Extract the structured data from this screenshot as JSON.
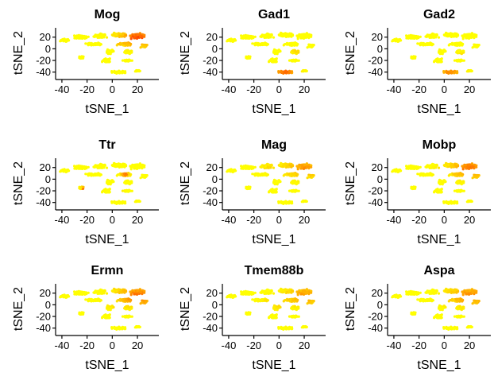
{
  "chart_data": {
    "type": "scatter",
    "layout": "3x3 grid of tSNE feature plots",
    "xlabel": "tSNE_1",
    "ylabel": "tSNE_2",
    "xlim": [
      -45,
      37
    ],
    "ylim": [
      -50,
      36
    ],
    "x_ticks": [
      -40,
      -20,
      0,
      20
    ],
    "x_tick_labels": [
      "-40",
      "-20",
      "0",
      "20"
    ],
    "y_ticks": [
      -40,
      -20,
      0,
      20
    ],
    "y_tick_labels": [
      "-40",
      "-20",
      "0",
      "20"
    ],
    "color_scale": {
      "low": "#ffff00",
      "mid": "#ffa500",
      "high": "#ff2200"
    },
    "panels": [
      {
        "title": "Mog",
        "hotspots": [
          {
            "x": 20,
            "y": 18,
            "r": 14,
            "level": 0.85
          },
          {
            "x": 5,
            "y": 10,
            "r": 6,
            "level": 0.4
          }
        ]
      },
      {
        "title": "Gad1",
        "hotspots": [
          {
            "x": 5,
            "y": -40,
            "r": 9,
            "level": 0.75
          },
          {
            "x": 15,
            "y": -5,
            "r": 5,
            "level": 0.25
          }
        ]
      },
      {
        "title": "Gad2",
        "hotspots": [
          {
            "x": 5,
            "y": -40,
            "r": 9,
            "level": 0.6
          },
          {
            "x": 15,
            "y": -10,
            "r": 5,
            "level": 0.2
          }
        ]
      },
      {
        "title": "Ttr",
        "hotspots": [
          {
            "x": -22,
            "y": -16,
            "r": 2.5,
            "level": 0.9
          },
          {
            "x": 5,
            "y": -18,
            "r": 2.5,
            "level": 0.9
          },
          {
            "x": 10,
            "y": 8,
            "r": 3,
            "level": 0.8
          }
        ]
      },
      {
        "title": "Mag",
        "hotspots": [
          {
            "x": 20,
            "y": 18,
            "r": 15,
            "level": 0.55
          },
          {
            "x": -5,
            "y": 20,
            "r": 10,
            "level": 0.2
          }
        ]
      },
      {
        "title": "Mobp",
        "hotspots": [
          {
            "x": 20,
            "y": 18,
            "r": 15,
            "level": 0.7
          },
          {
            "x": 0,
            "y": 15,
            "r": 8,
            "level": 0.3
          }
        ]
      },
      {
        "title": "Ermn",
        "hotspots": [
          {
            "x": 20,
            "y": 15,
            "r": 16,
            "level": 0.75
          },
          {
            "x": 5,
            "y": 0,
            "r": 8,
            "level": 0.3
          }
        ]
      },
      {
        "title": "Tmem88b",
        "hotspots": [
          {
            "x": 20,
            "y": 15,
            "r": 15,
            "level": 0.55
          },
          {
            "x": 0,
            "y": 5,
            "r": 12,
            "level": 0.25
          }
        ]
      },
      {
        "title": "Aspa",
        "hotspots": [
          {
            "x": 20,
            "y": 15,
            "r": 16,
            "level": 0.65
          },
          {
            "x": 5,
            "y": 5,
            "r": 8,
            "level": 0.3
          }
        ]
      }
    ],
    "clusters": [
      {
        "x": -38,
        "y": 15,
        "w": 10,
        "h": 6,
        "n": 40
      },
      {
        "x": -25,
        "y": 20,
        "w": 14,
        "h": 8,
        "n": 70
      },
      {
        "x": -10,
        "y": 22,
        "w": 14,
        "h": 9,
        "n": 70
      },
      {
        "x": 5,
        "y": 24,
        "w": 14,
        "h": 10,
        "n": 80
      },
      {
        "x": 20,
        "y": 22,
        "w": 14,
        "h": 12,
        "n": 90
      },
      {
        "x": -15,
        "y": 8,
        "w": 20,
        "h": 6,
        "n": 60
      },
      {
        "x": 10,
        "y": 8,
        "w": 16,
        "h": 8,
        "n": 60
      },
      {
        "x": 25,
        "y": 5,
        "w": 8,
        "h": 8,
        "n": 30
      },
      {
        "x": -25,
        "y": -15,
        "w": 6,
        "h": 5,
        "n": 20
      },
      {
        "x": -2,
        "y": -5,
        "w": 8,
        "h": 10,
        "n": 40
      },
      {
        "x": 12,
        "y": -5,
        "w": 10,
        "h": 8,
        "n": 40
      },
      {
        "x": -5,
        "y": -20,
        "w": 12,
        "h": 8,
        "n": 40
      },
      {
        "x": 12,
        "y": -20,
        "w": 10,
        "h": 6,
        "n": 30
      },
      {
        "x": 5,
        "y": -40,
        "w": 14,
        "h": 6,
        "n": 50
      },
      {
        "x": 20,
        "y": -38,
        "w": 6,
        "h": 5,
        "n": 15
      }
    ]
  }
}
